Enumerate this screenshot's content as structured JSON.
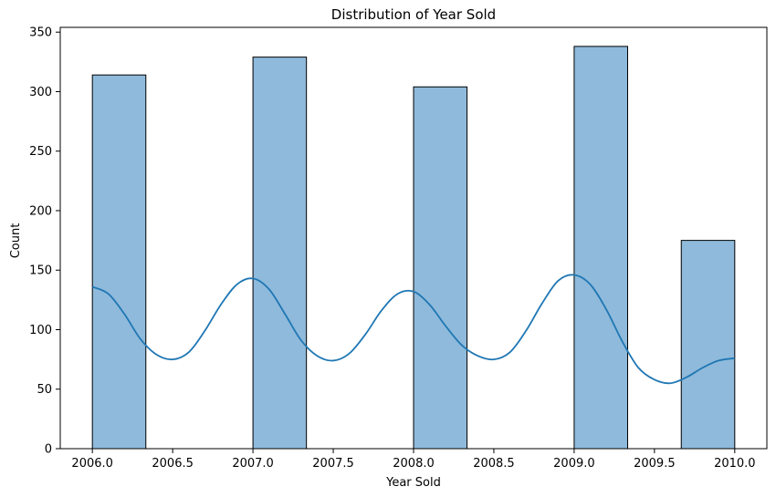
{
  "chart_data": {
    "type": "bar",
    "title": "Distribution of Year Sold",
    "xlabel": "Year Sold",
    "ylabel": "Count",
    "xlim": [
      2005.8,
      2010.2
    ],
    "ylim": [
      0,
      354
    ],
    "x_ticks": [
      "2006.0",
      "2006.5",
      "2007.0",
      "2007.5",
      "2008.0",
      "2008.5",
      "2009.0",
      "2009.5",
      "2010.0"
    ],
    "y_ticks": [
      "0",
      "50",
      "100",
      "150",
      "200",
      "250",
      "300",
      "350"
    ],
    "bins": [
      {
        "start": 2006.0,
        "end": 2006.333,
        "count": 314
      },
      {
        "start": 2007.0,
        "end": 2007.333,
        "count": 329
      },
      {
        "start": 2008.0,
        "end": 2008.333,
        "count": 304
      },
      {
        "start": 2009.0,
        "end": 2009.333,
        "count": 338
      },
      {
        "start": 2009.667,
        "end": 2010.0,
        "count": 175
      }
    ],
    "kde": {
      "x": [
        2006.0,
        2006.1,
        2006.2,
        2006.3,
        2006.4,
        2006.5,
        2006.6,
        2006.7,
        2006.8,
        2006.9,
        2007.0,
        2007.1,
        2007.2,
        2007.3,
        2007.4,
        2007.5,
        2007.6,
        2007.7,
        2007.8,
        2007.9,
        2008.0,
        2008.1,
        2008.2,
        2008.3,
        2008.4,
        2008.5,
        2008.6,
        2008.7,
        2008.8,
        2008.9,
        2009.0,
        2009.1,
        2009.2,
        2009.3,
        2009.4,
        2009.5,
        2009.6,
        2009.7,
        2009.8,
        2009.9,
        2010.0
      ],
      "y": [
        136,
        130,
        113,
        92,
        79,
        75,
        81,
        99,
        121,
        138,
        143,
        134,
        113,
        91,
        78,
        74,
        80,
        96,
        116,
        130,
        132,
        121,
        103,
        87,
        78,
        75,
        81,
        99,
        122,
        141,
        146,
        138,
        117,
        90,
        68,
        58,
        55,
        60,
        68,
        74,
        76
      ]
    },
    "colors": {
      "bar_fill": "#8fbadb",
      "bar_edge": "#000000",
      "kde_line": "#1f77b4"
    },
    "grid": false,
    "legend": "none"
  }
}
